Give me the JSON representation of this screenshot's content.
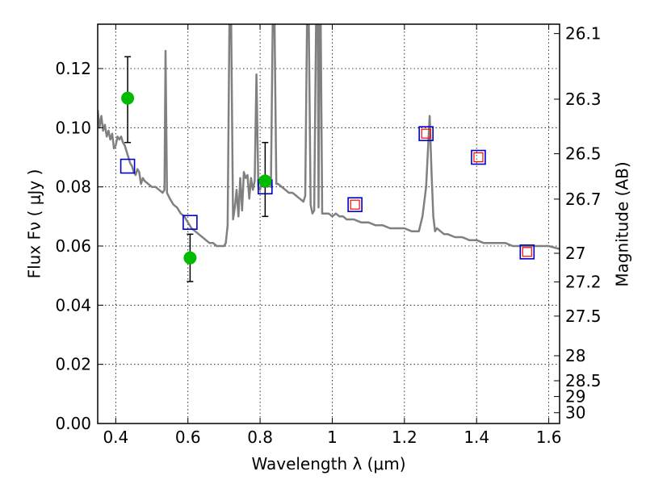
{
  "chart_data": {
    "type": "scatter",
    "xlabel": "Wavelength  λ (μm)",
    "ylabel": "Flux  Fν  ( μJy )",
    "y2label": "Magnitude (AB)",
    "xlim": [
      0.35,
      1.63
    ],
    "ylim": [
      0.0,
      0.135
    ],
    "grid": true,
    "x_ticks": [
      "0.4",
      "0.6",
      "0.8",
      "1",
      "1.2",
      "1.4",
      "1.6"
    ],
    "y_ticks": [
      "0.00",
      "0.02",
      "0.04",
      "0.06",
      "0.08",
      "0.10",
      "0.12"
    ],
    "mag_ticks": [
      "26.1",
      "26.3",
      "26.5",
      "26.7",
      "27",
      "27.2",
      "27.5",
      "28",
      "28.5",
      "29",
      "30"
    ],
    "colors": {
      "spectrum": "#808080",
      "observed": "#00bb00",
      "model_box": "#0000cc",
      "model_inner": "#ff0000",
      "errorbar": "#000000"
    },
    "series": [
      {
        "role": "model-spectrum",
        "points": [
          [
            0.35,
            0.106
          ],
          [
            0.355,
            0.1
          ],
          [
            0.36,
            0.104
          ],
          [
            0.365,
            0.099
          ],
          [
            0.37,
            0.101
          ],
          [
            0.375,
            0.097
          ],
          [
            0.38,
            0.099
          ],
          [
            0.385,
            0.096
          ],
          [
            0.39,
            0.098
          ],
          [
            0.395,
            0.093
          ],
          [
            0.4,
            0.094
          ],
          [
            0.405,
            0.097
          ],
          [
            0.41,
            0.096
          ],
          [
            0.415,
            0.097
          ],
          [
            0.42,
            0.095
          ],
          [
            0.425,
            0.094
          ],
          [
            0.43,
            0.092
          ],
          [
            0.435,
            0.09
          ],
          [
            0.44,
            0.088
          ],
          [
            0.445,
            0.087
          ],
          [
            0.45,
            0.085
          ],
          [
            0.455,
            0.084
          ],
          [
            0.46,
            0.086
          ],
          [
            0.465,
            0.085
          ],
          [
            0.47,
            0.081
          ],
          [
            0.475,
            0.083
          ],
          [
            0.48,
            0.082
          ],
          [
            0.49,
            0.081
          ],
          [
            0.5,
            0.08
          ],
          [
            0.51,
            0.08
          ],
          [
            0.52,
            0.079
          ],
          [
            0.53,
            0.078
          ],
          [
            0.535,
            0.079
          ],
          [
            0.538,
            0.126
          ],
          [
            0.542,
            0.078
          ],
          [
            0.55,
            0.076
          ],
          [
            0.56,
            0.074
          ],
          [
            0.57,
            0.073
          ],
          [
            0.58,
            0.071
          ],
          [
            0.59,
            0.07
          ],
          [
            0.6,
            0.068
          ],
          [
            0.61,
            0.066
          ],
          [
            0.62,
            0.065
          ],
          [
            0.63,
            0.064
          ],
          [
            0.64,
            0.063
          ],
          [
            0.65,
            0.062
          ],
          [
            0.66,
            0.061
          ],
          [
            0.67,
            0.061
          ],
          [
            0.68,
            0.06
          ],
          [
            0.69,
            0.06
          ],
          [
            0.7,
            0.06
          ],
          [
            0.705,
            0.061
          ],
          [
            0.71,
            0.067
          ],
          [
            0.715,
            0.135
          ],
          [
            0.72,
            0.135
          ],
          [
            0.725,
            0.069
          ],
          [
            0.73,
            0.073
          ],
          [
            0.735,
            0.079
          ],
          [
            0.74,
            0.07
          ],
          [
            0.745,
            0.083
          ],
          [
            0.75,
            0.072
          ],
          [
            0.755,
            0.085
          ],
          [
            0.76,
            0.083
          ],
          [
            0.765,
            0.084
          ],
          [
            0.77,
            0.076
          ],
          [
            0.775,
            0.083
          ],
          [
            0.78,
            0.079
          ],
          [
            0.785,
            0.082
          ],
          [
            0.79,
            0.118
          ],
          [
            0.795,
            0.08
          ],
          [
            0.8,
            0.079
          ],
          [
            0.805,
            0.083
          ],
          [
            0.81,
            0.08
          ],
          [
            0.815,
            0.083
          ],
          [
            0.82,
            0.08
          ],
          [
            0.825,
            0.082
          ],
          [
            0.83,
            0.08
          ],
          [
            0.835,
            0.135
          ],
          [
            0.84,
            0.135
          ],
          [
            0.845,
            0.081
          ],
          [
            0.85,
            0.081
          ],
          [
            0.86,
            0.08
          ],
          [
            0.87,
            0.079
          ],
          [
            0.88,
            0.078
          ],
          [
            0.89,
            0.078
          ],
          [
            0.9,
            0.077
          ],
          [
            0.91,
            0.076
          ],
          [
            0.92,
            0.075
          ],
          [
            0.925,
            0.077
          ],
          [
            0.93,
            0.135
          ],
          [
            0.935,
            0.135
          ],
          [
            0.94,
            0.074
          ],
          [
            0.945,
            0.071
          ],
          [
            0.95,
            0.072
          ],
          [
            0.955,
            0.135
          ],
          [
            0.96,
            0.135
          ],
          [
            0.962,
            0.073
          ],
          [
            0.965,
            0.135
          ],
          [
            0.968,
            0.135
          ],
          [
            0.972,
            0.071
          ],
          [
            0.98,
            0.071
          ],
          [
            0.99,
            0.071
          ],
          [
            1.0,
            0.07
          ],
          [
            1.01,
            0.071
          ],
          [
            1.02,
            0.07
          ],
          [
            1.03,
            0.07
          ],
          [
            1.04,
            0.069
          ],
          [
            1.06,
            0.069
          ],
          [
            1.08,
            0.068
          ],
          [
            1.1,
            0.068
          ],
          [
            1.12,
            0.067
          ],
          [
            1.14,
            0.067
          ],
          [
            1.16,
            0.066
          ],
          [
            1.18,
            0.066
          ],
          [
            1.2,
            0.066
          ],
          [
            1.22,
            0.065
          ],
          [
            1.24,
            0.065
          ],
          [
            1.25,
            0.07
          ],
          [
            1.26,
            0.08
          ],
          [
            1.27,
            0.104
          ],
          [
            1.275,
            0.085
          ],
          [
            1.28,
            0.07
          ],
          [
            1.285,
            0.065
          ],
          [
            1.29,
            0.066
          ],
          [
            1.3,
            0.065
          ],
          [
            1.31,
            0.064
          ],
          [
            1.32,
            0.064
          ],
          [
            1.34,
            0.063
          ],
          [
            1.36,
            0.063
          ],
          [
            1.38,
            0.062
          ],
          [
            1.4,
            0.062
          ],
          [
            1.42,
            0.061
          ],
          [
            1.44,
            0.061
          ],
          [
            1.46,
            0.061
          ],
          [
            1.48,
            0.061
          ],
          [
            1.5,
            0.06
          ],
          [
            1.52,
            0.06
          ],
          [
            1.54,
            0.06
          ],
          [
            1.56,
            0.06
          ],
          [
            1.58,
            0.06
          ],
          [
            1.6,
            0.06
          ],
          [
            1.63,
            0.059
          ]
        ]
      },
      {
        "role": "observed-flux",
        "points": [
          {
            "x": 0.433,
            "y": 0.11,
            "err_lo": 0.095,
            "err_hi": 0.124
          },
          {
            "x": 0.606,
            "y": 0.056,
            "err_lo": 0.048,
            "err_hi": 0.064
          },
          {
            "x": 0.814,
            "y": 0.082,
            "err_lo": 0.07,
            "err_hi": 0.095
          }
        ]
      },
      {
        "role": "model-band-flux",
        "points": [
          {
            "x": 0.433,
            "y": 0.087
          },
          {
            "x": 0.606,
            "y": 0.068
          },
          {
            "x": 0.814,
            "y": 0.08
          },
          {
            "x": 1.063,
            "y": 0.074
          },
          {
            "x": 1.26,
            "y": 0.098
          },
          {
            "x": 1.405,
            "y": 0.09
          },
          {
            "x": 1.54,
            "y": 0.058
          }
        ]
      },
      {
        "role": "model-band-flux-inner",
        "points": [
          {
            "x": 1.063,
            "y": 0.074
          },
          {
            "x": 1.26,
            "y": 0.098
          },
          {
            "x": 1.405,
            "y": 0.09
          },
          {
            "x": 1.54,
            "y": 0.058
          }
        ]
      }
    ]
  }
}
